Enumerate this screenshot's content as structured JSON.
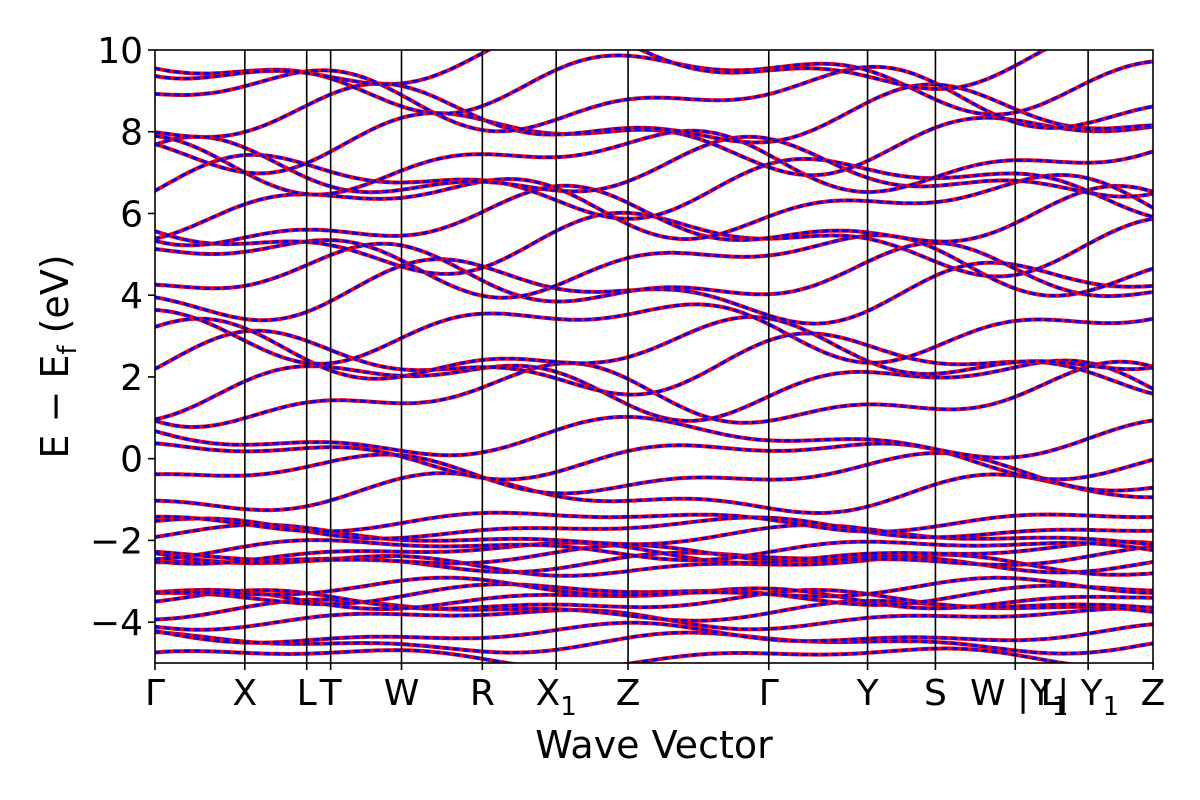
{
  "chart_data": {
    "type": "line",
    "title": "",
    "xlabel": "Wave Vector",
    "ylabel": "E − E",
    "ylabel_subscript": "f",
    "ylabel_unit": "(eV)",
    "ylim": [
      -5,
      10
    ],
    "yticks": [
      -4,
      -2,
      0,
      2,
      4,
      6,
      8,
      10
    ],
    "ytick_labels": [
      "−4",
      "−2",
      "0",
      "2",
      "4",
      "6",
      "8",
      "10"
    ],
    "xlim": [
      0,
      100
    ],
    "kpoints": [
      {
        "x": 0,
        "label": "Γ"
      },
      {
        "x": 9,
        "label": "X"
      },
      {
        "x": 15.2,
        "label": "L"
      },
      {
        "x": 17.6,
        "label": "T"
      },
      {
        "x": 24.7,
        "label": "W"
      },
      {
        "x": 32.8,
        "label": "R"
      },
      {
        "x": 40.2,
        "label": "X",
        "sub": "1"
      },
      {
        "x": 47.4,
        "label": "Z"
      },
      {
        "x": 61.5,
        "label": "Γ"
      },
      {
        "x": 71.4,
        "label": "Y"
      },
      {
        "x": 78.2,
        "label": "S"
      },
      {
        "x": 86.2,
        "label": "W | L"
      },
      {
        "x": 93.5,
        "label": "| Y",
        "sub": "1"
      },
      {
        "x": 100,
        "label": "Z"
      }
    ],
    "extra_labels": [
      {
        "x": 89.6,
        "label": "Y",
        "sub": "1"
      }
    ],
    "grid": false,
    "series": [
      {
        "color": "#ff0000",
        "style": "solid"
      },
      {
        "color": "#0000ff",
        "style": "dashed"
      }
    ],
    "band_anchor_energies": [
      -4.85,
      -4.5,
      -4.3,
      -3.9,
      -3.7,
      -3.5,
      -3.4,
      -3.3,
      -3.2,
      -2.6,
      -2.5,
      -2.4,
      -2.3,
      -2.2,
      -1.9,
      -1.7,
      -1.5,
      -0.9,
      -0.4,
      0.05,
      0.5,
      1.5,
      1.8,
      2.3,
      2.6,
      3.2,
      4.1,
      4.4,
      4.8,
      5.3,
      5.8,
      6.2,
      6.7,
      7.0,
      7.3,
      7.8,
      8.3,
      8.8,
      9.3,
      9.7
    ]
  }
}
